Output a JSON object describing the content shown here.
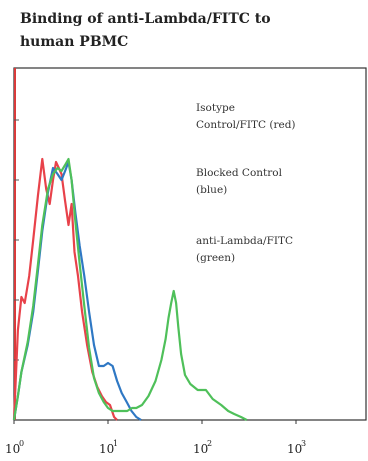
{
  "chart_data": {
    "type": "line",
    "title_lines": [
      "Binding of anti-Lambda/FITC to",
      "human PBMC"
    ],
    "xlabel": "",
    "ylabel": "",
    "x_scale": "log",
    "xlim": [
      1,
      10000
    ],
    "ylim": [
      0,
      100
    ],
    "x_ticks": [
      {
        "base": "10",
        "exp": "0",
        "value": 1
      },
      {
        "base": "10",
        "exp": "1",
        "value": 10
      },
      {
        "base": "10",
        "exp": "2",
        "value": 100
      },
      {
        "base": "10",
        "exp": "3",
        "value": 1000
      }
    ],
    "legend": [
      {
        "lines": [
          "Isotype",
          "Control/FITC (red)"
        ]
      },
      {
        "lines": [
          "Blocked Control",
          "(blue)"
        ]
      },
      {
        "lines": [
          "anti-Lambda/FITC",
          "(green)"
        ]
      }
    ],
    "series": [
      {
        "color": "#e8424a",
        "x": [
          1.0,
          1.1,
          1.2,
          1.3,
          1.45,
          1.6,
          1.8,
          2.0,
          2.2,
          2.4,
          2.6,
          2.8,
          3.0,
          3.2,
          3.5,
          3.8,
          4.1,
          4.4,
          4.8,
          5.3,
          6.0,
          6.8,
          7.7,
          8.6,
          9.5,
          10.5,
          11.6,
          12.5
        ],
        "y": [
          0,
          30,
          41,
          39,
          48,
          60,
          75,
          87,
          77,
          72,
          80,
          86,
          84,
          82,
          73,
          65,
          72,
          56,
          48,
          36,
          25,
          16,
          11,
          8,
          6,
          5,
          1,
          0
        ]
      },
      {
        "color": "#2f78c4",
        "x": [
          1.0,
          1.1,
          1.2,
          1.4,
          1.6,
          1.8,
          2.0,
          2.3,
          2.6,
          2.9,
          3.2,
          3.5,
          3.8,
          4.1,
          4.5,
          5.0,
          5.6,
          6.3,
          7.1,
          8.0,
          9.0,
          10.0,
          11.2,
          12.5,
          14.0,
          15.8,
          17.8,
          20.0,
          22.5
        ],
        "y": [
          0,
          8,
          16,
          25,
          36,
          50,
          63,
          76,
          84,
          82,
          80,
          83,
          86,
          80,
          69,
          58,
          48,
          36,
          25,
          18,
          18,
          19,
          18,
          13,
          9,
          6,
          3,
          1,
          0
        ]
      },
      {
        "color": "#4fc05a",
        "x": [
          1.0,
          1.1,
          1.2,
          1.4,
          1.6,
          1.8,
          2.0,
          2.3,
          2.6,
          2.9,
          3.2,
          3.5,
          3.8,
          4.1,
          4.5,
          5.0,
          5.6,
          6.3,
          7.1,
          8.0,
          9.0,
          10.0,
          11.2,
          12.5,
          14.0,
          16.0,
          18.0,
          20.0,
          23.0,
          27.0,
          32.0,
          37.0,
          41.0,
          44.0,
          47.0,
          50.0,
          53.0,
          56.0,
          60.0,
          66.0,
          75.0,
          90.0,
          110.0,
          130.0,
          160.0,
          190.0,
          220.0,
          260.0,
          300.0
        ],
        "y": [
          0,
          8,
          16,
          26,
          38,
          52,
          65,
          77,
          82,
          84,
          83,
          85,
          87,
          80,
          66,
          52,
          38,
          24,
          14,
          9,
          6,
          4,
          3,
          3,
          3,
          3,
          4,
          4,
          5,
          8,
          13,
          20,
          27,
          34,
          39,
          43,
          39,
          31,
          22,
          15,
          12,
          10,
          10,
          7,
          5,
          3,
          2,
          1,
          0
        ]
      }
    ],
    "grid": false
  }
}
